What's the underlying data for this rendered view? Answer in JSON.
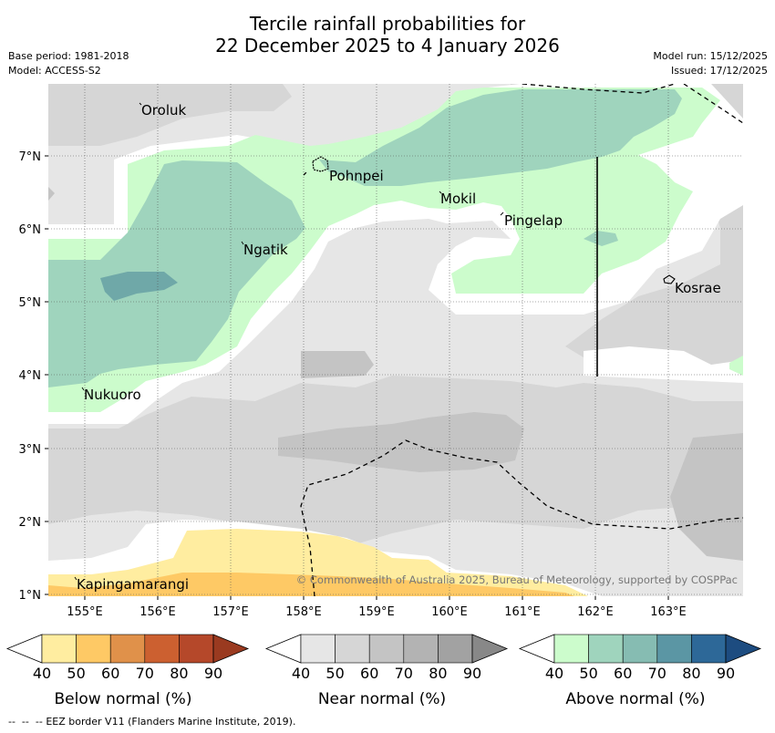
{
  "header": {
    "title_line1": "Tercile rainfall probabilities for",
    "title_line2": "22 December 2025 to 4 January 2026",
    "base_period": "Base period: 1981-2018",
    "model": "Model: ACCESS-S2",
    "model_run": "Model run: 15/12/2025",
    "issued": "Issued: 17/12/2025"
  },
  "map": {
    "lon_ticks": [
      "155°E",
      "156°E",
      "157°E",
      "158°E",
      "159°E",
      "160°E",
      "161°E",
      "162°E",
      "163°E"
    ],
    "lat_ticks": [
      "7°N",
      "6°N",
      "5°N",
      "4°N",
      "3°N",
      "2°N",
      "1°N"
    ],
    "places": [
      "Oroluk",
      "Pohnpei",
      "Mokil",
      "Pingelap",
      "Ngatik",
      "Kosrae",
      "Nukuoro",
      "Kapingamarangi"
    ],
    "copyright": "© Commonwealth of Australia 2025, Bureau of Meteorology, supported by COSPPac"
  },
  "colorbars": [
    {
      "title": "Below normal (%)",
      "ticks": [
        "40",
        "50",
        "60",
        "70",
        "80",
        "90"
      ],
      "colors": [
        "#ffeda0",
        "#fec965",
        "#e0914a",
        "#cc6030",
        "#b5482a",
        "#9a3a20"
      ]
    },
    {
      "title": "Near normal (%)",
      "ticks": [
        "40",
        "50",
        "60",
        "70",
        "80",
        "90"
      ],
      "colors": [
        "#e6e6e6",
        "#d6d6d6",
        "#c4c4c4",
        "#b3b3b3",
        "#a2a2a2",
        "#888888"
      ]
    },
    {
      "title": "Above normal (%)",
      "ticks": [
        "40",
        "50",
        "60",
        "70",
        "80",
        "90"
      ],
      "colors": [
        "#ccfccc",
        "#9fd4bd",
        "#86bcb2",
        "#5b96a4",
        "#2d6898",
        "#1d4c80"
      ]
    }
  ],
  "footer": {
    "legend_text": "EEZ border V11 (Flanders Marine Institute, 2019)."
  }
}
